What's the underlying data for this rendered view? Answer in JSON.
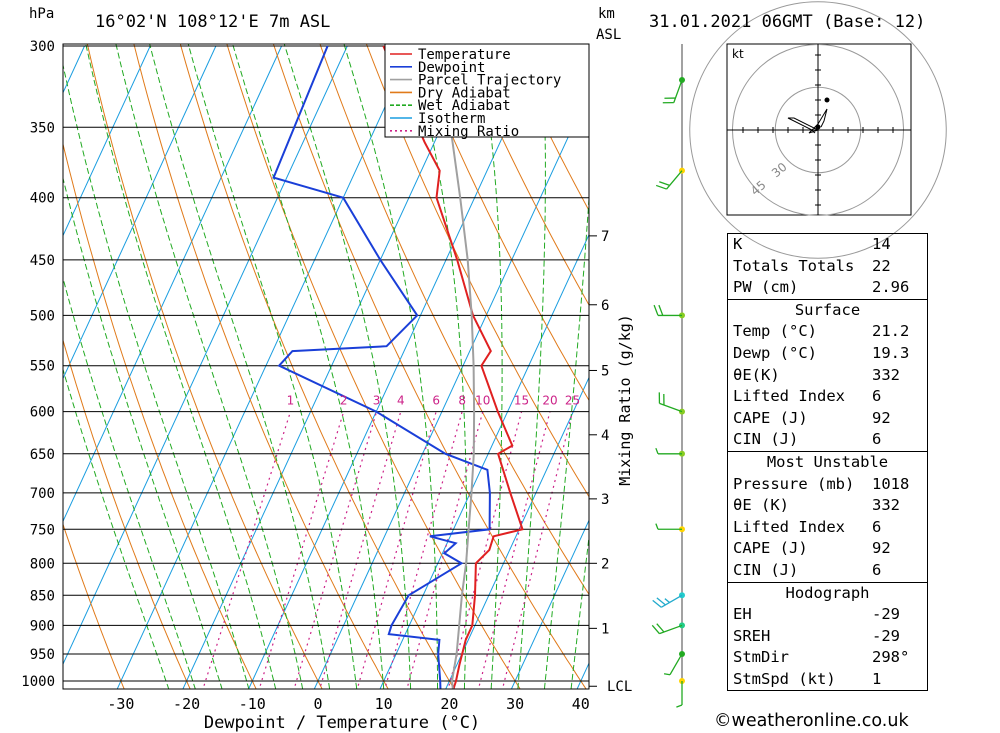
{
  "header": {
    "pressure_unit": "hPa",
    "location": "16°02'N  108°12'E  7m  ASL",
    "height_unit_km": "km",
    "height_unit_asl": "ASL",
    "datetime": "31.01.2021  06GMT  (Base: 12)"
  },
  "chart_data": [
    {
      "type": "line",
      "title": "16°02'N 108°12'E 7m ASL",
      "xlabel": "Dewpoint / Temperature (°C)",
      "ylabel": "hPa",
      "right_axis_label": "Mixing Ratio (g/kg)",
      "x_ticks": [
        -30,
        -20,
        -10,
        0,
        10,
        20,
        30,
        40
      ],
      "pressure_ticks": [
        300,
        350,
        400,
        450,
        500,
        550,
        600,
        650,
        700,
        750,
        800,
        850,
        900,
        950,
        1000
      ],
      "height_km_ticks": [
        1,
        2,
        3,
        4,
        5,
        6,
        7
      ],
      "lcl_label": "LCL",
      "mixing_ratio_labels": [
        1,
        2,
        3,
        4,
        6,
        8,
        10,
        15,
        20,
        25
      ],
      "legend": [
        "Temperature",
        "Dewpoint",
        "Parcel Trajectory",
        "Dry Adiabat",
        "Wet Adiabat",
        "Isotherm",
        "Mixing Ratio"
      ],
      "colors": {
        "temperature": "#e02020",
        "dewpoint": "#1a3fd8",
        "parcel": "#a0a0a0",
        "dry_adiabat": "#e07a1a",
        "wet_adiabat": "#22aa22",
        "isotherm": "#1a9de0",
        "mixing_ratio": "#cc2288"
      },
      "series": [
        {
          "name": "Temperature",
          "points": [
            [
              1018,
              21.2
            ],
            [
              1000,
              21.0
            ],
            [
              970,
              20.4
            ],
            [
              925,
              19.6
            ],
            [
              900,
              19.6
            ],
            [
              850,
              17.9
            ],
            [
              800,
              15.8
            ],
            [
              780,
              16.9
            ],
            [
              760,
              16.6
            ],
            [
              750,
              20.5
            ],
            [
              700,
              16.1
            ],
            [
              650,
              11.5
            ],
            [
              640,
              13.1
            ],
            [
              600,
              8.5
            ],
            [
              550,
              2.8
            ],
            [
              535,
              3.2
            ],
            [
              500,
              -2.0
            ],
            [
              450,
              -8.3
            ],
            [
              400,
              -15.8
            ],
            [
              380,
              -17.2
            ],
            [
              360,
              -21.5
            ],
            [
              320,
              -30.0
            ],
            [
              300,
              -34.5
            ]
          ]
        },
        {
          "name": "Dewpoint",
          "points": [
            [
              1018,
              19.3
            ],
            [
              1000,
              18.6
            ],
            [
              950,
              16.4
            ],
            [
              925,
              15.6
            ],
            [
              915,
              7.5
            ],
            [
              900,
              7.3
            ],
            [
              850,
              7.8
            ],
            [
              800,
              13.6
            ],
            [
              785,
              10.3
            ],
            [
              770,
              11.3
            ],
            [
              760,
              6.9
            ],
            [
              750,
              15.5
            ],
            [
              700,
              13.0
            ],
            [
              670,
              11.0
            ],
            [
              650,
              3.5
            ],
            [
              600,
              -10.0
            ],
            [
              550,
              -28.0
            ],
            [
              535,
              -27.0
            ],
            [
              530,
              -13.0
            ],
            [
              500,
              -10.5
            ],
            [
              450,
              -20.0
            ],
            [
              400,
              -30.0
            ],
            [
              385,
              -42.0
            ],
            [
              300,
              -43.0
            ]
          ]
        },
        {
          "name": "Parcel Trajectory",
          "points": [
            [
              1018,
              21.2
            ],
            [
              1000,
              20.4
            ],
            [
              950,
              19.2
            ],
            [
              900,
              17.6
            ],
            [
              850,
              15.9
            ],
            [
              800,
              14.3
            ],
            [
              750,
              12.3
            ],
            [
              700,
              10.2
            ],
            [
              650,
              7.8
            ],
            [
              600,
              4.9
            ],
            [
              550,
              1.6
            ],
            [
              500,
              -2.2
            ],
            [
              450,
              -6.7
            ],
            [
              400,
              -12.2
            ],
            [
              350,
              -18.6
            ],
            [
              310,
              -26.5
            ]
          ]
        }
      ],
      "wind_barbs": [
        {
          "p": 1000,
          "dir": 180,
          "speed": 5
        },
        {
          "p": 950,
          "dir": 210,
          "speed": 5
        },
        {
          "p": 900,
          "dir": 250,
          "speed": 10
        },
        {
          "p": 850,
          "dir": 240,
          "speed": 15
        },
        {
          "p": 750,
          "dir": 270,
          "speed": 5
        },
        {
          "p": 650,
          "dir": 270,
          "speed": 5
        },
        {
          "p": 600,
          "dir": 290,
          "speed": 10
        },
        {
          "p": 500,
          "dir": 270,
          "speed": 10
        },
        {
          "p": 380,
          "dir": 220,
          "speed": 10
        },
        {
          "p": 320,
          "dir": 200,
          "speed": 10
        }
      ]
    },
    {
      "type": "scatter",
      "title": "hodograph",
      "unit_label": "kt",
      "ring_labels": [
        "30",
        "45"
      ],
      "trace_kt": [
        [
          -1,
          -1
        ],
        [
          -2,
          0
        ],
        [
          -10,
          4
        ],
        [
          -8,
          4
        ],
        [
          0,
          0
        ],
        [
          -3,
          -1
        ],
        [
          0,
          2
        ],
        [
          3,
          7
        ],
        [
          2,
          3
        ],
        [
          1,
          1
        ]
      ],
      "storm_motion_kt": [
        0,
        1
      ]
    }
  ],
  "stats": {
    "indices": [
      {
        "label": "K",
        "value": "14"
      },
      {
        "label": "Totals Totals",
        "value": "22"
      },
      {
        "label": "PW (cm)",
        "value": "2.96"
      }
    ],
    "surface_title": "Surface",
    "surface": [
      {
        "label": "Temp (°C)",
        "value": "21.2"
      },
      {
        "label": "Dewp (°C)",
        "value": "19.3"
      },
      {
        "label": "θE(K)",
        "value": "332"
      },
      {
        "label": "Lifted Index",
        "value": "6"
      },
      {
        "label": "CAPE (J)",
        "value": "92"
      },
      {
        "label": "CIN (J)",
        "value": "6"
      }
    ],
    "unstable_title": "Most Unstable",
    "unstable": [
      {
        "label": "Pressure (mb)",
        "value": "1018"
      },
      {
        "label": "θE (K)",
        "value": "332"
      },
      {
        "label": "Lifted Index",
        "value": "6"
      },
      {
        "label": "CAPE (J)",
        "value": "92"
      },
      {
        "label": "CIN (J)",
        "value": "6"
      }
    ],
    "hodo_title": "Hodograph",
    "hodo": [
      {
        "label": "EH",
        "value": "-29"
      },
      {
        "label": "SREH",
        "value": "-29"
      },
      {
        "label": "StmDir",
        "value": "298°"
      },
      {
        "label": "StmSpd (kt)",
        "value": "1"
      }
    ]
  },
  "footer": {
    "credit": "©weatheronline.co.uk"
  }
}
